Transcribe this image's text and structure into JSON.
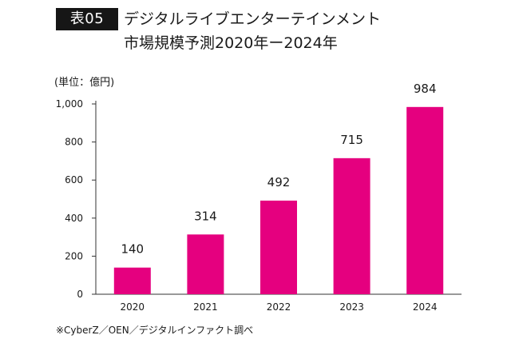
{
  "header": {
    "tag": "表05",
    "title_line1": "デジタルライブエンターテインメント",
    "title_line2": "市場規模予測2020年ー2024年"
  },
  "unit_label": "(単位：億円)",
  "source_note": "※CyberZ／OEN／デジタルインファクト調べ",
  "colors": {
    "bar": "#e5007f",
    "axis": "#333333",
    "text": "#1a1a1a"
  },
  "chart_data": {
    "type": "bar",
    "title": "デジタルライブエンターテインメント 市場規模予測2020年ー2024年",
    "ylabel": "(単位：億円)",
    "xlabel": "",
    "categories": [
      "2020",
      "2021",
      "2022",
      "2023",
      "2024"
    ],
    "values": [
      140,
      314,
      492,
      715,
      984
    ],
    "data_labels": [
      "140",
      "314",
      "492",
      "715",
      "984"
    ],
    "yticks": [
      0,
      200,
      400,
      600,
      800,
      1000
    ],
    "ytick_labels": [
      "0",
      "200",
      "400",
      "600",
      "800",
      "1,000"
    ],
    "ylim": [
      0,
      1000
    ],
    "grid": false,
    "legend": "none"
  }
}
